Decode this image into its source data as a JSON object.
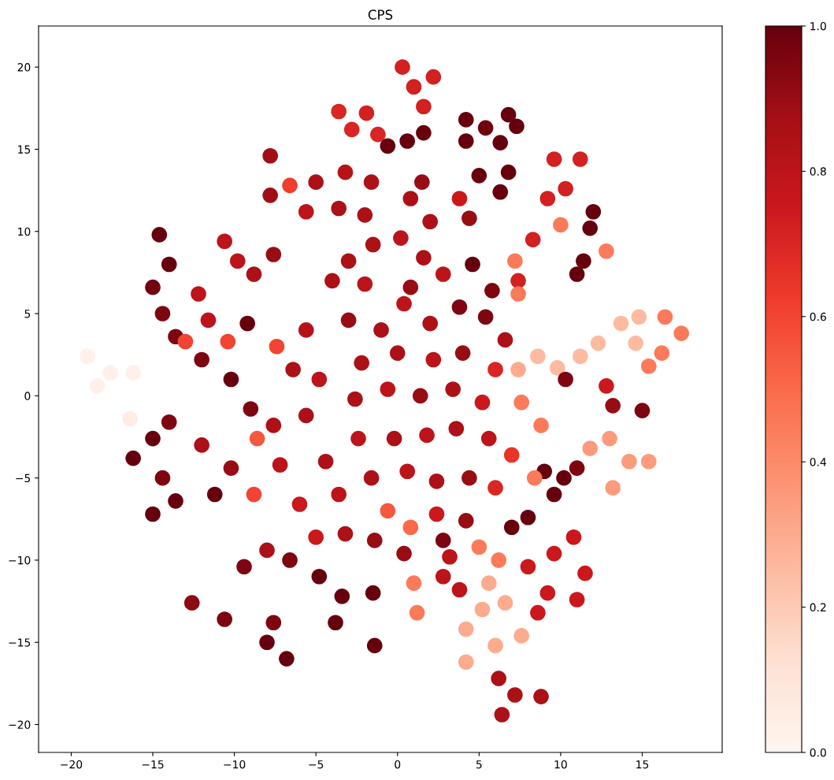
{
  "chart_data": {
    "type": "scatter",
    "title": "CPS",
    "x": [
      0.3,
      1.0,
      2.2,
      1.6,
      -3.6,
      -2.8,
      -1.9,
      -1.2,
      -0.6,
      0.6,
      1.6,
      4.2,
      5.4,
      6.8,
      7.3,
      4.2,
      6.3,
      5.0,
      6.8,
      6.3,
      3.8,
      4.4,
      9.6,
      11.2,
      9.2,
      10.3,
      8.3,
      7.4,
      10.0,
      11.8,
      12.0,
      11.4,
      12.8,
      11.0,
      7.2,
      7.4,
      12.3,
      13.7,
      14.8,
      14.6,
      11.2,
      9.8,
      16.4,
      17.4,
      16.2,
      15.4,
      12.8,
      13.2,
      15.0,
      10.3,
      13.0,
      14.2,
      15.4,
      13.2,
      11.8,
      9.0,
      10.2,
      11.0,
      9.6,
      7.0,
      8.0,
      8.0,
      9.6,
      10.8,
      11.5,
      9.2,
      11.0,
      8.6,
      4.2,
      5.2,
      6.6,
      7.6,
      4.2,
      6.0,
      5.6,
      1.0,
      1.2,
      2.8,
      3.8,
      3.2,
      5.0,
      6.2,
      6.2,
      7.2,
      8.8,
      6.4,
      -3.0,
      -1.5,
      0.2,
      1.6,
      -4.0,
      -2.0,
      0.8,
      2.8,
      -5.0,
      -3.2,
      -1.6,
      -5.6,
      -3.6,
      -6.6,
      -2.0,
      0.8,
      2.0,
      1.5,
      4.6,
      5.8,
      -3.0,
      -1.0,
      0.4,
      2.0,
      3.8,
      5.4,
      6.6,
      -2.2,
      0.0,
      2.2,
      4.0,
      6.0,
      7.4,
      8.6,
      -2.6,
      -0.6,
      1.4,
      3.4,
      5.2,
      7.6,
      8.8,
      -2.4,
      -0.2,
      1.8,
      3.6,
      5.6,
      7.0,
      8.4,
      -1.6,
      0.6,
      2.4,
      4.4,
      6.0,
      -0.6,
      0.8,
      2.4,
      4.2,
      2.8,
      0.4,
      -1.4,
      -19.0,
      -17.6,
      -16.2,
      -18.4,
      -16.4,
      -16.2,
      -15.0,
      -14.0,
      -15.0,
      -13.6,
      -14.4,
      -14.6,
      -14.0,
      -15.0,
      -14.4,
      -13.6,
      -10.6,
      -9.8,
      -8.8,
      -12.2,
      -11.6,
      -7.6,
      -7.8,
      -7.8,
      -13.0,
      -10.4,
      -12.0,
      -9.2,
      -7.4,
      -5.6,
      -6.4,
      -4.8,
      -10.2,
      -9.0,
      -7.6,
      -5.6,
      -12.0,
      -10.2,
      -11.2,
      -8.6,
      -8.8,
      -7.2,
      -6.0,
      -5.0,
      -3.6,
      -4.4,
      -3.2,
      -8.0,
      -9.4,
      -6.6,
      -12.6,
      -10.6,
      -8.0,
      -6.8,
      -7.6,
      -4.8,
      -3.8,
      -3.4,
      -1.5,
      -1.4
    ],
    "values": [
      20.0,
      18.8,
      19.4,
      17.6,
      17.3,
      16.2,
      17.2,
      15.9,
      15.2,
      15.5,
      16.0,
      16.8,
      16.3,
      17.1,
      16.4,
      15.5,
      15.4,
      13.4,
      13.6,
      12.4,
      12.0,
      10.8,
      14.4,
      14.4,
      12.0,
      12.6,
      9.5,
      7.0,
      10.4,
      10.2,
      11.2,
      8.2,
      8.8,
      7.4,
      8.2,
      6.2,
      3.2,
      4.4,
      4.8,
      3.2,
      2.4,
      1.7,
      4.8,
      3.8,
      2.6,
      1.8,
      0.6,
      -0.6,
      -0.9,
      1.0,
      -2.6,
      -4.0,
      -4.0,
      -5.6,
      -3.2,
      -4.6,
      -5.0,
      -4.4,
      -6.0,
      -8.0,
      -7.4,
      -10.4,
      -9.6,
      -8.6,
      -10.8,
      -12.0,
      -12.4,
      -13.2,
      -14.2,
      -13.0,
      -12.6,
      -14.6,
      -16.2,
      -15.2,
      -11.4,
      -11.4,
      -13.2,
      -11.0,
      -11.8,
      -9.8,
      -9.2,
      -10.0,
      -17.2,
      -18.2,
      -18.3,
      -19.4,
      8.2,
      9.2,
      9.6,
      8.4,
      7.0,
      6.8,
      6.6,
      7.4,
      13.0,
      13.6,
      13.0,
      11.2,
      11.4,
      12.8,
      11.0,
      12.0,
      10.6,
      13.0,
      8.0,
      6.4,
      4.6,
      4.0,
      5.6,
      4.4,
      5.4,
      4.8,
      3.4,
      2.0,
      2.6,
      2.2,
      2.6,
      1.6,
      1.6,
      2.4,
      -0.2,
      0.4,
      0.0,
      0.4,
      -0.4,
      -0.4,
      -1.8,
      -2.6,
      -2.6,
      -2.4,
      -2.0,
      -2.6,
      -3.6,
      -5.0,
      -5.0,
      -4.6,
      -5.2,
      -5.0,
      -5.6,
      -7.0,
      -8.0,
      -7.2,
      -7.6,
      -8.8,
      -9.6,
      -8.8,
      2.4,
      1.4,
      1.4,
      0.6,
      -1.4,
      -3.8,
      -2.6,
      -1.6,
      -7.2,
      -6.4,
      -5.0,
      9.8,
      8.0,
      6.6,
      5.0,
      3.6,
      9.4,
      8.2,
      7.4,
      6.2,
      4.6,
      8.6,
      14.6,
      12.2,
      3.3,
      3.3,
      2.2,
      4.4,
      3.0,
      4.0,
      1.6,
      1.0,
      1.0,
      -0.8,
      -1.8,
      -1.2,
      -3.0,
      -4.4,
      -6.0,
      -2.6,
      -6.0,
      -4.2,
      -6.6,
      -8.6,
      -6.0,
      -4.0,
      -8.4,
      -9.4,
      -10.4,
      -10.0,
      -12.6,
      -13.6,
      -15.0,
      -16.0,
      -13.8,
      -11.0,
      -13.8,
      -12.2,
      -12.0,
      -15.2
    ],
    "cvalues": [
      0.72,
      0.72,
      0.72,
      0.72,
      0.7,
      0.7,
      0.72,
      0.7,
      1.0,
      1.0,
      1.0,
      1.0,
      0.98,
      1.0,
      1.0,
      1.0,
      1.0,
      1.0,
      1.0,
      1.0,
      0.75,
      0.9,
      0.72,
      0.72,
      0.72,
      0.72,
      0.72,
      0.72,
      0.45,
      1.0,
      1.0,
      1.0,
      0.45,
      1.0,
      0.45,
      0.45,
      0.25,
      0.25,
      0.25,
      0.25,
      0.25,
      0.25,
      0.45,
      0.45,
      0.45,
      0.45,
      0.75,
      0.9,
      0.95,
      0.95,
      0.35,
      0.35,
      0.35,
      0.35,
      0.35,
      1.0,
      1.0,
      0.95,
      1.0,
      1.0,
      1.0,
      0.75,
      0.75,
      0.75,
      0.75,
      0.75,
      0.75,
      0.75,
      0.3,
      0.3,
      0.3,
      0.3,
      0.3,
      0.3,
      0.3,
      0.45,
      0.45,
      0.8,
      0.8,
      0.8,
      0.45,
      0.45,
      0.85,
      0.85,
      0.85,
      0.85,
      0.85,
      0.85,
      0.8,
      0.85,
      0.85,
      0.8,
      0.9,
      0.8,
      0.85,
      0.82,
      0.85,
      0.8,
      0.85,
      0.62,
      0.85,
      0.85,
      0.85,
      0.9,
      1.0,
      0.95,
      0.9,
      0.85,
      0.8,
      0.85,
      0.95,
      0.95,
      0.85,
      0.85,
      0.85,
      0.8,
      0.9,
      0.7,
      0.3,
      0.25,
      0.85,
      0.8,
      0.9,
      0.85,
      0.75,
      0.45,
      0.45,
      0.8,
      0.85,
      0.8,
      0.85,
      0.8,
      0.65,
      0.45,
      0.85,
      0.8,
      0.85,
      0.9,
      0.7,
      0.55,
      0.5,
      0.75,
      0.9,
      0.95,
      0.9,
      0.9,
      0.03,
      0.03,
      0.03,
      0.03,
      0.05,
      1.0,
      1.0,
      0.95,
      1.0,
      1.0,
      0.95,
      1.0,
      1.0,
      0.98,
      0.95,
      0.95,
      0.8,
      0.8,
      0.85,
      0.8,
      0.8,
      0.9,
      0.88,
      0.88,
      0.6,
      0.6,
      0.95,
      1.0,
      0.6,
      0.82,
      0.85,
      0.8,
      1.0,
      0.95,
      0.85,
      0.85,
      0.85,
      0.9,
      1.0,
      0.55,
      0.6,
      0.8,
      0.75,
      0.75,
      0.8,
      0.85,
      0.85,
      0.85,
      0.95,
      0.95,
      0.92,
      0.95,
      1.0,
      1.0,
      0.95,
      1.0,
      1.0,
      1.0,
      1.0,
      1.0
    ],
    "marker": "circle",
    "xlim": [
      -22.0,
      19.9
    ],
    "ylim": [
      -21.7,
      22.5
    ],
    "xticks": [
      -20,
      -15,
      -10,
      -5,
      0,
      5,
      10,
      15
    ],
    "yticks": [
      -20,
      -15,
      -10,
      -5,
      0,
      5,
      10,
      15,
      20
    ],
    "clim": [
      0,
      1
    ],
    "cticks": [
      {
        "value": 0,
        "label": "0.0"
      },
      0.2,
      0.4,
      0.6,
      0.8,
      {
        "value": 1,
        "label": "1.0"
      }
    ]
  }
}
